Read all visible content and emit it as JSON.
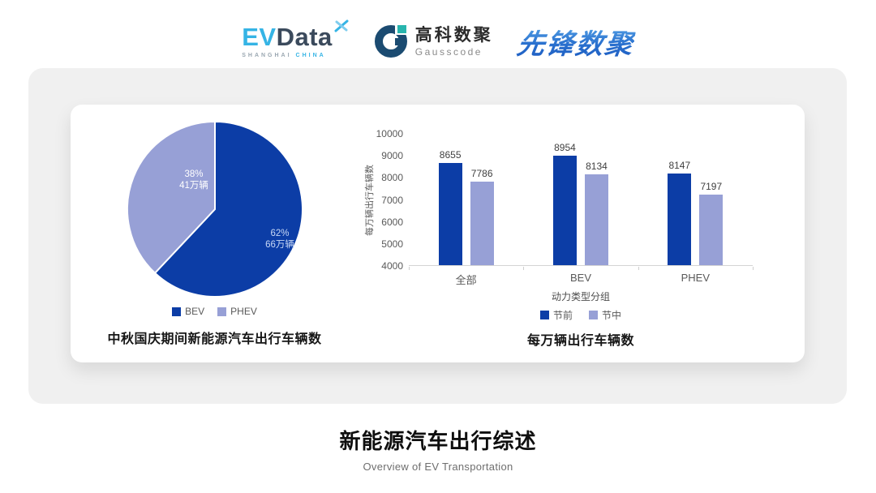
{
  "header": {
    "evdata": {
      "ev": "EV",
      "data": "Data",
      "sub_left": "SHANGHAI",
      "sub_right": "CHINA"
    },
    "gausscode": {
      "name_cn": "高科数聚",
      "name_en": "Gausscode"
    },
    "pioneer": {
      "name": "先锋数聚"
    }
  },
  "colors": {
    "series_dark": "#0c3da6",
    "series_light": "#97a0d6",
    "panel_gray": "#f0f0f0",
    "axis_text": "#595959",
    "pie_label_on_dark": "#c9d9f6",
    "pie_label_on_light": "#ffffff"
  },
  "chart_data": [
    {
      "type": "pie",
      "title": "中秋国庆期间新能源汽车出行车辆数",
      "labels": [
        "BEV",
        "PHEV"
      ],
      "values_percent": [
        62,
        38
      ],
      "values_text": [
        "66万辆",
        "41万辆"
      ],
      "colors": [
        "#0c3da6",
        "#97a0d6"
      ],
      "start_angle": "top",
      "direction": "clockwise",
      "legend_position": "bottom"
    },
    {
      "type": "bar",
      "title": "每万辆出行车辆数",
      "categories": [
        "全部",
        "BEV",
        "PHEV"
      ],
      "series": [
        {
          "name": "节前",
          "values": [
            8655,
            8954,
            8147
          ],
          "color": "#0c3da6"
        },
        {
          "name": "节中",
          "values": [
            7786,
            8134,
            7197
          ],
          "color": "#97a0d6"
        }
      ],
      "xlabel": "动力类型分组",
      "ylabel": "每万辆出行车辆数",
      "ylim": [
        4000,
        10000
      ],
      "ytick_step": 1000,
      "grid": false,
      "legend_position": "bottom"
    }
  ],
  "footer": {
    "title": "新能源汽车出行综述",
    "subtitle": "Overview of EV Transportation"
  }
}
